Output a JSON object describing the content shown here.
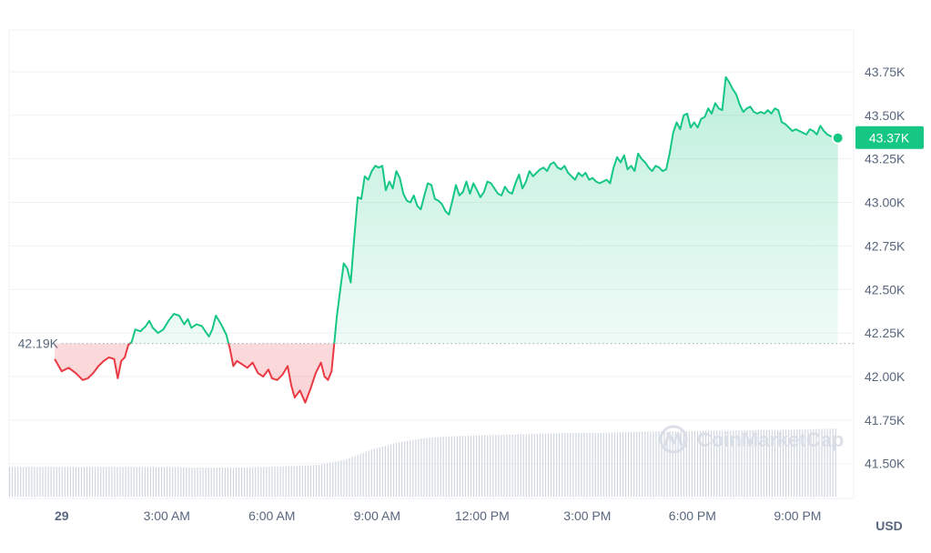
{
  "chart_data": {
    "type": "area",
    "currency_label": "USD",
    "reference_line": {
      "value": 42190,
      "label": "42.19K"
    },
    "last_value_label": "43.37K",
    "y_ticks": [
      {
        "value": 41500,
        "label": "41.50K"
      },
      {
        "value": 41750,
        "label": "41.75K"
      },
      {
        "value": 42000,
        "label": "42.00K"
      },
      {
        "value": 42250,
        "label": "42.25K"
      },
      {
        "value": 42500,
        "label": "42.50K"
      },
      {
        "value": 42750,
        "label": "42.75K"
      },
      {
        "value": 43000,
        "label": "43.00K"
      },
      {
        "value": 43250,
        "label": "43.25K"
      },
      {
        "value": 43500,
        "label": "43.50K"
      },
      {
        "value": 43750,
        "label": "43.75K"
      }
    ],
    "x_ticks": [
      {
        "hour": 0,
        "label": "29"
      },
      {
        "hour": 3,
        "label": "3:00 AM"
      },
      {
        "hour": 6,
        "label": "6:00 AM"
      },
      {
        "hour": 9,
        "label": "9:00 AM"
      },
      {
        "hour": 12,
        "label": "12:00 PM"
      },
      {
        "hour": 15,
        "label": "3:00 PM"
      },
      {
        "hour": 18,
        "label": "6:00 PM"
      },
      {
        "hour": 21,
        "label": "9:00 PM"
      }
    ],
    "ylim": [
      41300,
      43990
    ],
    "xlim": [
      -1.5,
      22.6
    ],
    "series": [
      {
        "points": [
          [
            -0.2,
            42100
          ],
          [
            0.0,
            42030
          ],
          [
            0.2,
            42050
          ],
          [
            0.4,
            42020
          ],
          [
            0.6,
            41980
          ],
          [
            0.75,
            41990
          ],
          [
            0.9,
            42020
          ],
          [
            1.05,
            42060
          ],
          [
            1.2,
            42090
          ],
          [
            1.35,
            42110
          ],
          [
            1.5,
            42100
          ],
          [
            1.6,
            41990
          ],
          [
            1.7,
            42090
          ],
          [
            1.8,
            42110
          ],
          [
            1.9,
            42180
          ],
          [
            2.0,
            42200
          ],
          [
            2.1,
            42270
          ],
          [
            2.25,
            42260
          ],
          [
            2.4,
            42290
          ],
          [
            2.5,
            42320
          ],
          [
            2.6,
            42280
          ],
          [
            2.75,
            42250
          ],
          [
            2.9,
            42270
          ],
          [
            3.05,
            42320
          ],
          [
            3.2,
            42360
          ],
          [
            3.35,
            42350
          ],
          [
            3.5,
            42300
          ],
          [
            3.6,
            42330
          ],
          [
            3.7,
            42280
          ],
          [
            3.85,
            42300
          ],
          [
            4.0,
            42290
          ],
          [
            4.1,
            42260
          ],
          [
            4.2,
            42230
          ],
          [
            4.3,
            42270
          ],
          [
            4.4,
            42350
          ],
          [
            4.55,
            42300
          ],
          [
            4.7,
            42240
          ],
          [
            4.8,
            42160
          ],
          [
            4.9,
            42060
          ],
          [
            5.0,
            42090
          ],
          [
            5.15,
            42070
          ],
          [
            5.3,
            42050
          ],
          [
            5.45,
            42080
          ],
          [
            5.6,
            42020
          ],
          [
            5.75,
            42000
          ],
          [
            5.9,
            42040
          ],
          [
            6.0,
            41990
          ],
          [
            6.15,
            41980
          ],
          [
            6.3,
            42010
          ],
          [
            6.45,
            42060
          ],
          [
            6.55,
            41950
          ],
          [
            6.65,
            41880
          ],
          [
            6.8,
            41920
          ],
          [
            6.95,
            41850
          ],
          [
            7.1,
            41930
          ],
          [
            7.25,
            42020
          ],
          [
            7.4,
            42080
          ],
          [
            7.5,
            42000
          ],
          [
            7.6,
            41980
          ],
          [
            7.7,
            42030
          ],
          [
            7.78,
            42190
          ],
          [
            7.85,
            42340
          ],
          [
            7.95,
            42500
          ],
          [
            8.05,
            42650
          ],
          [
            8.15,
            42620
          ],
          [
            8.25,
            42540
          ],
          [
            8.35,
            42800
          ],
          [
            8.45,
            43030
          ],
          [
            8.55,
            43020
          ],
          [
            8.65,
            43150
          ],
          [
            8.75,
            43130
          ],
          [
            8.85,
            43180
          ],
          [
            8.95,
            43210
          ],
          [
            9.05,
            43200
          ],
          [
            9.15,
            43210
          ],
          [
            9.25,
            43070
          ],
          [
            9.35,
            43120
          ],
          [
            9.45,
            43080
          ],
          [
            9.55,
            43180
          ],
          [
            9.65,
            43140
          ],
          [
            9.75,
            43050
          ],
          [
            9.85,
            43010
          ],
          [
            9.95,
            43000
          ],
          [
            10.05,
            43040
          ],
          [
            10.15,
            42980
          ],
          [
            10.25,
            42960
          ],
          [
            10.35,
            43040
          ],
          [
            10.45,
            43110
          ],
          [
            10.55,
            43100
          ],
          [
            10.65,
            43020
          ],
          [
            10.75,
            43010
          ],
          [
            10.85,
            42990
          ],
          [
            10.95,
            42950
          ],
          [
            11.05,
            42930
          ],
          [
            11.15,
            43010
          ],
          [
            11.25,
            43100
          ],
          [
            11.35,
            43040
          ],
          [
            11.45,
            43060
          ],
          [
            11.55,
            43120
          ],
          [
            11.65,
            43050
          ],
          [
            11.75,
            43110
          ],
          [
            11.85,
            43070
          ],
          [
            11.95,
            43030
          ],
          [
            12.05,
            43060
          ],
          [
            12.15,
            43120
          ],
          [
            12.25,
            43110
          ],
          [
            12.35,
            43080
          ],
          [
            12.45,
            43050
          ],
          [
            12.55,
            43040
          ],
          [
            12.65,
            43090
          ],
          [
            12.75,
            43060
          ],
          [
            12.85,
            43050
          ],
          [
            12.95,
            43110
          ],
          [
            13.05,
            43160
          ],
          [
            13.15,
            43080
          ],
          [
            13.25,
            43120
          ],
          [
            13.35,
            43180
          ],
          [
            13.45,
            43150
          ],
          [
            13.55,
            43170
          ],
          [
            13.65,
            43190
          ],
          [
            13.75,
            43200
          ],
          [
            13.85,
            43180
          ],
          [
            13.95,
            43220
          ],
          [
            14.05,
            43230
          ],
          [
            14.15,
            43200
          ],
          [
            14.25,
            43190
          ],
          [
            14.35,
            43210
          ],
          [
            14.45,
            43170
          ],
          [
            14.55,
            43150
          ],
          [
            14.65,
            43130
          ],
          [
            14.75,
            43170
          ],
          [
            14.85,
            43150
          ],
          [
            14.95,
            43170
          ],
          [
            15.05,
            43130
          ],
          [
            15.15,
            43140
          ],
          [
            15.25,
            43120
          ],
          [
            15.35,
            43110
          ],
          [
            15.45,
            43120
          ],
          [
            15.55,
            43130
          ],
          [
            15.65,
            43110
          ],
          [
            15.75,
            43200
          ],
          [
            15.85,
            43260
          ],
          [
            15.95,
            43230
          ],
          [
            16.05,
            43270
          ],
          [
            16.15,
            43190
          ],
          [
            16.25,
            43210
          ],
          [
            16.35,
            43180
          ],
          [
            16.45,
            43280
          ],
          [
            16.55,
            43250
          ],
          [
            16.65,
            43230
          ],
          [
            16.75,
            43200
          ],
          [
            16.85,
            43180
          ],
          [
            16.95,
            43210
          ],
          [
            17.05,
            43200
          ],
          [
            17.15,
            43180
          ],
          [
            17.25,
            43190
          ],
          [
            17.35,
            43280
          ],
          [
            17.45,
            43400
          ],
          [
            17.55,
            43460
          ],
          [
            17.65,
            43420
          ],
          [
            17.75,
            43500
          ],
          [
            17.85,
            43510
          ],
          [
            17.95,
            43430
          ],
          [
            18.05,
            43460
          ],
          [
            18.15,
            43430
          ],
          [
            18.25,
            43480
          ],
          [
            18.35,
            43490
          ],
          [
            18.45,
            43540
          ],
          [
            18.55,
            43510
          ],
          [
            18.65,
            43570
          ],
          [
            18.75,
            43540
          ],
          [
            18.85,
            43530
          ],
          [
            18.95,
            43720
          ],
          [
            19.05,
            43690
          ],
          [
            19.15,
            43650
          ],
          [
            19.25,
            43620
          ],
          [
            19.35,
            43560
          ],
          [
            19.45,
            43520
          ],
          [
            19.55,
            43540
          ],
          [
            19.65,
            43550
          ],
          [
            19.75,
            43520
          ],
          [
            19.85,
            43510
          ],
          [
            19.95,
            43520
          ],
          [
            20.05,
            43510
          ],
          [
            20.15,
            43530
          ],
          [
            20.25,
            43510
          ],
          [
            20.35,
            43540
          ],
          [
            20.45,
            43530
          ],
          [
            20.55,
            43460
          ],
          [
            20.65,
            43450
          ],
          [
            20.75,
            43430
          ],
          [
            20.85,
            43410
          ],
          [
            20.95,
            43420
          ],
          [
            21.05,
            43410
          ],
          [
            21.15,
            43400
          ],
          [
            21.25,
            43390
          ],
          [
            21.35,
            43420
          ],
          [
            21.45,
            43410
          ],
          [
            21.55,
            43390
          ],
          [
            21.65,
            43440
          ],
          [
            21.75,
            43410
          ],
          [
            21.85,
            43390
          ],
          [
            21.95,
            43380
          ],
          [
            22.05,
            43370
          ],
          [
            22.15,
            43370
          ]
        ]
      }
    ],
    "volume": {
      "baseline_values": [
        0.42,
        0.42,
        0.42,
        0.42,
        0.42,
        0.42,
        0.42,
        0.41,
        0.41,
        0.41,
        0.42,
        0.43,
        0.45,
        0.52,
        0.66,
        0.76,
        0.82,
        0.85,
        0.86,
        0.87,
        0.88,
        0.89,
        0.9,
        0.9,
        0.91,
        0.92,
        0.92,
        0.93,
        0.93,
        0.94,
        0.94,
        0.95,
        0.96
      ]
    },
    "colors": {
      "up": "#16c784",
      "down": "#ea3943",
      "grid": "#eff2f5",
      "ref_line": "#b0b8c4",
      "volume": "#cfd6e0",
      "badge": "#16c784"
    },
    "watermark": {
      "text": "CoinMarketCap",
      "icon": "coinmarketcap-logo-icon"
    }
  }
}
